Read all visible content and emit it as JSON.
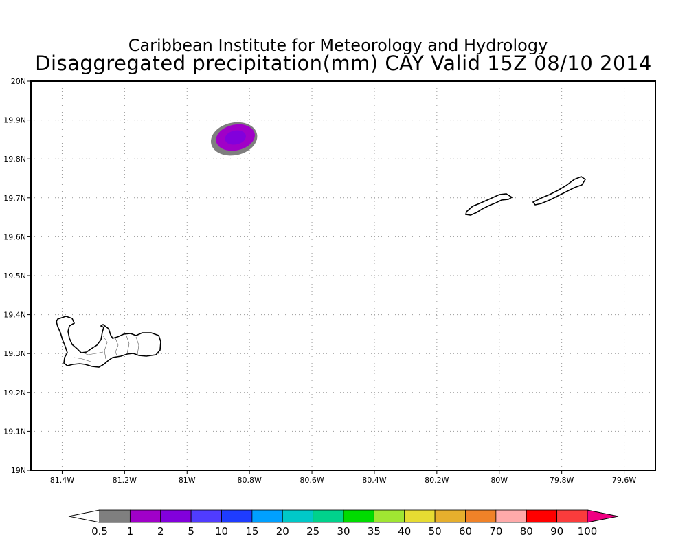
{
  "title": {
    "line1": "Caribbean Institute for Meteorology and Hydrology",
    "line2": "Disaggregated precipitation(mm) CAY Valid 15Z 08/10 2014"
  },
  "map": {
    "lon_range": [
      -81.5,
      -79.5
    ],
    "lat_range": [
      19.0,
      20.0
    ],
    "x_ticks": [
      {
        "value": -81.4,
        "label": "81.4W"
      },
      {
        "value": -81.2,
        "label": "81.2W"
      },
      {
        "value": -81.0,
        "label": "81W"
      },
      {
        "value": -80.8,
        "label": "80.8W"
      },
      {
        "value": -80.6,
        "label": "80.6W"
      },
      {
        "value": -80.4,
        "label": "80.4W"
      },
      {
        "value": -80.2,
        "label": "80.2W"
      },
      {
        "value": -80.0,
        "label": "80W"
      },
      {
        "value": -79.8,
        "label": "79.8W"
      },
      {
        "value": -79.6,
        "label": "79.6W"
      }
    ],
    "y_ticks": [
      {
        "value": 20.0,
        "label": "20N"
      },
      {
        "value": 19.9,
        "label": "19.9N"
      },
      {
        "value": 19.8,
        "label": "19.8N"
      },
      {
        "value": 19.7,
        "label": "19.7N"
      },
      {
        "value": 19.6,
        "label": "19.6N"
      },
      {
        "value": 19.5,
        "label": "19.5N"
      },
      {
        "value": 19.4,
        "label": "19.4N"
      },
      {
        "value": 19.3,
        "label": "19.3N"
      },
      {
        "value": 19.2,
        "label": "19.2N"
      },
      {
        "value": 19.1,
        "label": "19.1N"
      },
      {
        "value": 19.0,
        "label": "19N"
      }
    ],
    "grid": "dotted",
    "precip_cell": {
      "center_lon": -80.845,
      "center_lat": 19.855,
      "layers": [
        {
          "min_mm": 0.5,
          "color": "#7f7f7f",
          "rx_deg": 0.075,
          "ry_deg": 0.042
        },
        {
          "min_mm": 1,
          "color": "#a000c8",
          "rx_deg": 0.063,
          "ry_deg": 0.033
        },
        {
          "min_mm": 2,
          "color": "#8200dc",
          "rx_deg": 0.034,
          "ry_deg": 0.018
        }
      ]
    },
    "islands": [
      "Grand Cayman",
      "Little Cayman",
      "Cayman Brac"
    ]
  },
  "colorbar": {
    "labels": [
      "0.5",
      "1",
      "2",
      "5",
      "10",
      "15",
      "20",
      "25",
      "30",
      "35",
      "40",
      "50",
      "60",
      "70",
      "80",
      "90",
      "100"
    ],
    "colors": [
      "#ffffff",
      "#7f7f7f",
      "#a000c8",
      "#8200dc",
      "#503cff",
      "#1e3cff",
      "#00a0ff",
      "#00c8c8",
      "#00d28c",
      "#00dc00",
      "#a0e632",
      "#e6dc32",
      "#e6af2d",
      "#f08228",
      "#ffaaaa",
      "#ff0000",
      "#fa3c3c",
      "#f00082"
    ]
  }
}
